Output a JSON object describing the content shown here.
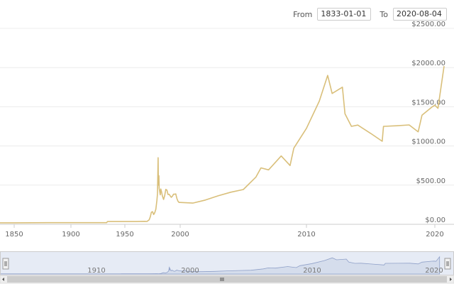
{
  "range_selector": {
    "from_label": "From",
    "from_value": "1833-01-01",
    "to_label": "To",
    "to_value": "2020-08-04"
  },
  "chart_data": {
    "type": "line",
    "title": "",
    "xlabel": "",
    "ylabel": "",
    "series": [
      {
        "color": "#d9bf7a",
        "points": [
          [
            1833,
            18.93
          ],
          [
            1850,
            18.93
          ],
          [
            1880,
            20.67
          ],
          [
            1900,
            20.67
          ],
          [
            1933,
            20.67
          ],
          [
            1934,
            35
          ],
          [
            1960,
            35
          ],
          [
            1968,
            38
          ],
          [
            1970,
            36
          ],
          [
            1972,
            58
          ],
          [
            1973,
            97
          ],
          [
            1974,
            154
          ],
          [
            1975,
            161
          ],
          [
            1976,
            125
          ],
          [
            1977,
            148
          ],
          [
            1978,
            193
          ],
          [
            1979,
            306
          ],
          [
            1979.5,
            390
          ],
          [
            1980.05,
            850
          ],
          [
            1980.3,
            500
          ],
          [
            1980.8,
            620
          ],
          [
            1981,
            460
          ],
          [
            1981.5,
            420
          ],
          [
            1982,
            376
          ],
          [
            1982.5,
            450
          ],
          [
            1983,
            424
          ],
          [
            1984,
            360
          ],
          [
            1985,
            317
          ],
          [
            1986,
            368
          ],
          [
            1987,
            446
          ],
          [
            1988,
            437
          ],
          [
            1989,
            381
          ],
          [
            1990,
            383
          ],
          [
            1991,
            362
          ],
          [
            1992,
            344
          ],
          [
            1993,
            360
          ],
          [
            1994,
            384
          ],
          [
            1995,
            384
          ],
          [
            1996,
            388
          ],
          [
            1997,
            331
          ],
          [
            1998,
            294
          ],
          [
            1999,
            279
          ],
          [
            2000,
            279
          ],
          [
            2001,
            271
          ],
          [
            2002,
            310
          ],
          [
            2003,
            363
          ],
          [
            2004,
            409
          ],
          [
            2005,
            444
          ],
          [
            2006,
            603
          ],
          [
            2006.4,
            720
          ],
          [
            2007,
            695
          ],
          [
            2008,
            872
          ],
          [
            2008.7,
            750
          ],
          [
            2009,
            972
          ],
          [
            2010,
            1225
          ],
          [
            2011,
            1572
          ],
          [
            2011.65,
            1900
          ],
          [
            2012,
            1669
          ],
          [
            2012.8,
            1750
          ],
          [
            2013,
            1411
          ],
          [
            2013.5,
            1250
          ],
          [
            2014,
            1266
          ],
          [
            2015,
            1160
          ],
          [
            2015.9,
            1060
          ],
          [
            2016,
            1250
          ],
          [
            2017,
            1257
          ],
          [
            2018,
            1268
          ],
          [
            2018.7,
            1180
          ],
          [
            2019,
            1393
          ],
          [
            2019.8,
            1500
          ],
          [
            2020,
            1520
          ],
          [
            2020.2,
            1480
          ],
          [
            2020.59,
            2019
          ]
        ]
      }
    ],
    "y_ticks": [
      "$0.00",
      "$500.00",
      "$1000.00",
      "$1500.00",
      "$2000.00",
      "$2500.00"
    ],
    "y_tick_values": [
      0,
      500,
      1000,
      1500,
      2000,
      2500
    ],
    "ylim": [
      0,
      2500
    ],
    "x_ticks": [
      "1850",
      "1900",
      "1950",
      "2000",
      "2010",
      "2020"
    ],
    "grid": true,
    "legend": "none"
  },
  "navigator": {
    "tick_labels": [
      "1910",
      "2000",
      "2010",
      "2020"
    ],
    "handle_icon": "grip-lines-icon",
    "left_arrow_icon": "left-arrow-icon",
    "right_arrow_icon": "right-arrow-icon"
  }
}
